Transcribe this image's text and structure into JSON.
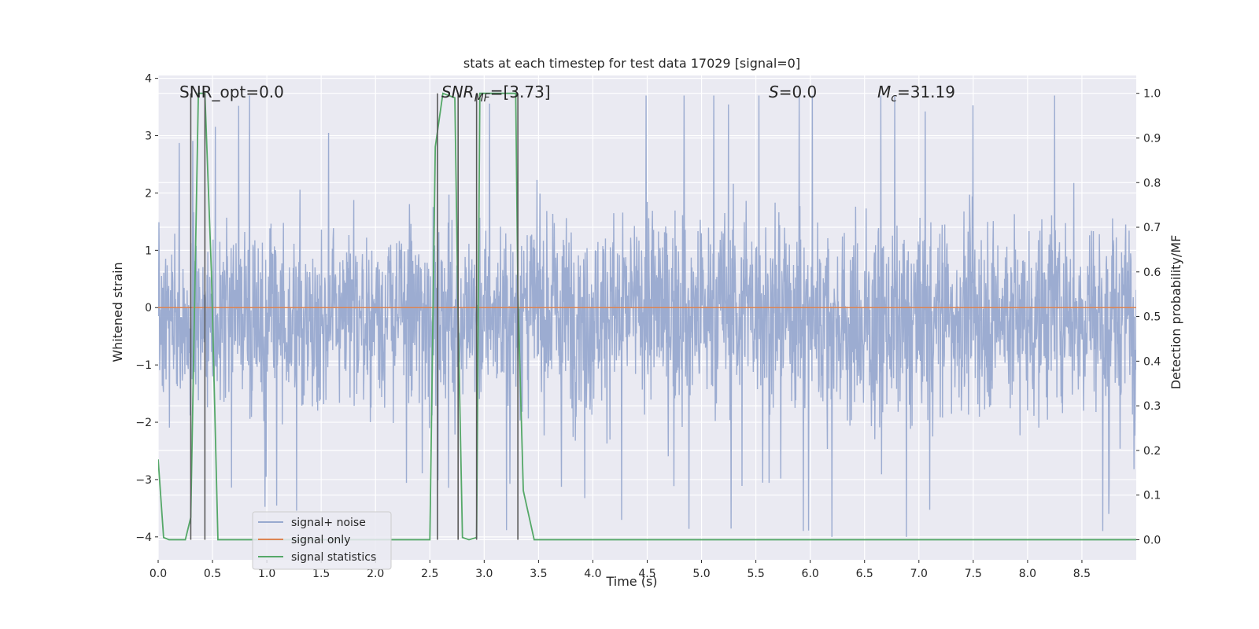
{
  "chart_data": {
    "type": "line",
    "title": "stats at each timestep for test data 17029 [signal=0]",
    "xlabel": "Time (s)",
    "ylabel": "Whitened strain",
    "y2label": "Detection probability/MF",
    "xlim": [
      0.0,
      9.0
    ],
    "ylim": [
      -4.4,
      4.05
    ],
    "y2lim": [
      -0.045,
      1.04
    ],
    "x_ticks": [
      0.0,
      0.5,
      1.0,
      1.5,
      2.0,
      2.5,
      3.0,
      3.5,
      4.0,
      4.5,
      5.0,
      5.5,
      6.0,
      6.5,
      7.0,
      7.5,
      8.0,
      8.5
    ],
    "x_tick_labels": [
      "0.0",
      "0.5",
      "1.0",
      "1.5",
      "2.0",
      "2.5",
      "3.0",
      "3.5",
      "4.0",
      "4.5",
      "5.0",
      "5.5",
      "6.0",
      "6.5",
      "7.0",
      "7.5",
      "8.0",
      "8.5"
    ],
    "y_ticks": [
      4,
      3,
      2,
      1,
      0,
      -1,
      -2,
      -3,
      -4
    ],
    "y_tick_labels": [
      "4",
      "3",
      "2",
      "1",
      "0",
      "−1",
      "−2",
      "−3",
      "−4"
    ],
    "y2_ticks": [
      1.0,
      0.9,
      0.8,
      0.7,
      0.6,
      0.5,
      0.4,
      0.3,
      0.2,
      0.1,
      0.0
    ],
    "y2_tick_labels": [
      "1.0",
      "0.9",
      "0.8",
      "0.7",
      "0.6",
      "0.5",
      "0.4",
      "0.3",
      "0.2",
      "0.1",
      "0.0"
    ],
    "grid": true,
    "legend_position": "lower-left",
    "legend": [
      "signal+ noise",
      "signal only",
      "signal statistics"
    ],
    "annotations": {
      "snr_opt": "SNR_opt=0.0",
      "snr_mf_main": "SNR",
      "snr_mf_sub": "MF",
      "snr_mf_value": "=[3.73]",
      "s_main": "S",
      "s_value": "=0.0",
      "mc_main": "M",
      "mc_sub": "c",
      "mc_value": "=31.19"
    },
    "series": [
      {
        "name": "signal+ noise",
        "axis": "left",
        "color": "#98a9cf",
        "note_envelope": "dense noise trace, amplitude mostly within ±2.2 with peaks near ±3.6",
        "peak_envelope": [
          [
            0.0,
            2.0,
            -2.3
          ],
          [
            0.5,
            2.2,
            -2.6
          ],
          [
            1.0,
            2.3,
            -2.7
          ],
          [
            1.5,
            2.2,
            -2.6
          ],
          [
            2.0,
            2.3,
            -2.6
          ],
          [
            2.5,
            2.5,
            -2.6
          ],
          [
            3.0,
            2.4,
            -2.8
          ],
          [
            3.5,
            2.6,
            -2.7
          ],
          [
            4.0,
            2.6,
            -2.8
          ],
          [
            4.5,
            2.7,
            -2.7
          ],
          [
            5.0,
            2.6,
            -2.8
          ],
          [
            5.5,
            2.8,
            -2.7
          ],
          [
            6.0,
            2.6,
            -2.8
          ],
          [
            6.5,
            2.6,
            -3.3
          ],
          [
            7.0,
            2.5,
            -2.9
          ],
          [
            7.5,
            2.6,
            -2.8
          ],
          [
            8.0,
            2.6,
            -2.9
          ],
          [
            8.5,
            2.7,
            -2.8
          ],
          [
            9.0,
            2.4,
            -2.6
          ]
        ]
      },
      {
        "name": "signal only",
        "axis": "left",
        "color": "#dd8452",
        "x": [
          0.0,
          9.0
        ],
        "y": [
          0.0,
          0.0
        ]
      },
      {
        "name": "signal statistics",
        "axis": "right",
        "color": "#55a868",
        "x": [
          0.0,
          0.05,
          0.1,
          0.25,
          0.3,
          0.37,
          0.43,
          0.49,
          0.55,
          1.0,
          2.0,
          2.5,
          2.55,
          2.62,
          2.73,
          2.76,
          2.8,
          2.86,
          2.93,
          2.96,
          3.05,
          3.29,
          3.31,
          3.36,
          3.46,
          4.0,
          5.0,
          6.0,
          7.0,
          7.7,
          8.0,
          8.2,
          8.5,
          9.0
        ],
        "y": [
          0.18,
          0.005,
          0.0,
          0.0,
          0.05,
          1.0,
          1.0,
          0.6,
          0.0,
          0.0,
          0.0,
          0.0,
          0.88,
          1.0,
          0.99,
          0.5,
          0.005,
          0.0,
          0.005,
          1.0,
          1.0,
          1.0,
          0.55,
          0.11,
          0.0,
          0.0,
          0.0,
          0.0,
          0.0,
          0.0,
          0.0,
          0.0,
          0.0,
          0.0
        ]
      }
    ],
    "vertical_lines_x": [
      0.3,
      0.43,
      2.57,
      2.76,
      2.93,
      3.31
    ]
  }
}
